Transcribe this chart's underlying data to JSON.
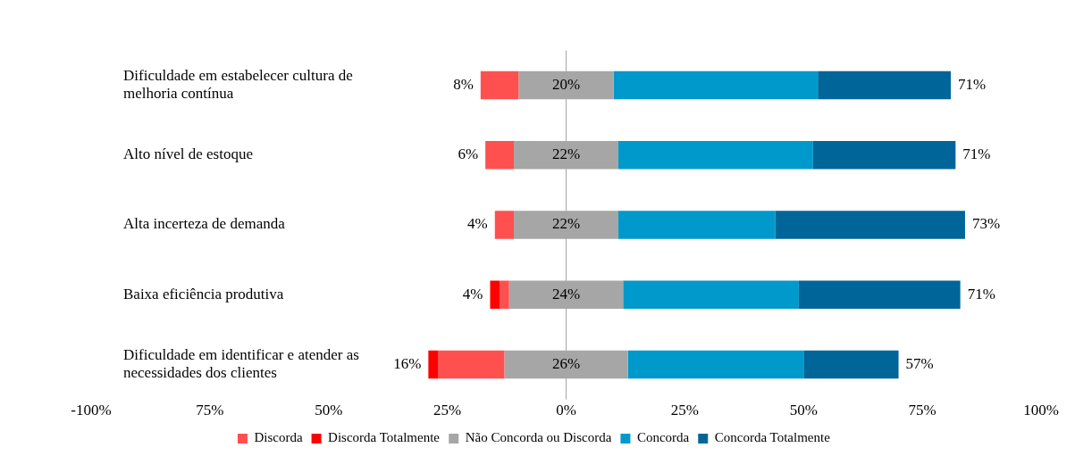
{
  "chart_data": {
    "type": "bar",
    "orientation": "horizontal",
    "categories": [
      "Dificuldade em estabelecer cultura de melhoria contínua",
      "Alto nível de estoque",
      "Alta incerteza de demanda",
      "Baixa eficiência produtiva",
      "Dificuldade em identificar e atender as necessidades dos clientes"
    ],
    "series": [
      {
        "name": "Discorda",
        "color": "#ff5050",
        "base": [
          -10,
          -11,
          -11,
          -12,
          -13
        ],
        "values": [
          -8,
          -6,
          -4,
          -2,
          -14
        ]
      },
      {
        "name": "Discorda Totalmente",
        "color": "#ff0000",
        "base": [
          null,
          null,
          null,
          -14,
          -27
        ],
        "values": [
          null,
          null,
          null,
          -2,
          -2
        ]
      },
      {
        "name": "Não Concorda ou Discorda",
        "color": "#a6a6a6",
        "base": [
          -10,
          -11,
          -11,
          -12,
          -13
        ],
        "values": [
          20,
          22,
          22,
          24,
          26
        ],
        "value_labels": [
          "20%",
          "22%",
          "22%",
          "24%",
          "26%"
        ]
      },
      {
        "name": "Concorda",
        "color": "#0099cc",
        "base": [
          10,
          11,
          11,
          12,
          13
        ],
        "values": [
          43,
          41,
          33,
          37,
          37
        ]
      },
      {
        "name": "Concorda Totalmente",
        "color": "#006699",
        "base": [
          53,
          52,
          44,
          49,
          50
        ],
        "values": [
          28,
          30,
          40,
          34,
          20
        ]
      }
    ],
    "xlim": [
      -100,
      100
    ],
    "xticks": [
      {
        "value": -100,
        "label": "-100%"
      },
      {
        "value": -75,
        "label": "75%"
      },
      {
        "value": -50,
        "label": "50%"
      },
      {
        "value": -25,
        "label": "25%"
      },
      {
        "value": 0,
        "label": "0%"
      },
      {
        "value": 25,
        "label": "25%"
      },
      {
        "value": 50,
        "label": "50%"
      },
      {
        "value": 75,
        "label": "75%"
      },
      {
        "value": 100,
        "label": "100%"
      }
    ],
    "ref_lines": [
      {
        "axis": "x",
        "value": 0,
        "color": "#a6a6a6"
      }
    ],
    "annotations": [
      {
        "text": "8%",
        "x": -18,
        "y": "Dificuldade em estabelecer cultura de melhoria contínua"
      },
      {
        "text": "6%",
        "x": -17,
        "y": "Alto nível de estoque"
      },
      {
        "text": "4%",
        "x": -15,
        "y": "Alta incerteza de demanda"
      },
      {
        "text": "4%",
        "x": -16,
        "y": "Baixa eficiência produtiva"
      },
      {
        "text": "16%",
        "x": -29,
        "y": "Dificuldade em identificar e atender as necessidades dos clientes"
      },
      {
        "text": "71%",
        "x": 81,
        "y": "Dificuldade em estabelecer cultura de melhoria contínua"
      },
      {
        "text": "71%",
        "x": 82,
        "y": "Alto nível de estoque"
      },
      {
        "text": "73%",
        "x": 84,
        "y": "Alta incerteza de demanda"
      },
      {
        "text": "71%",
        "x": 83,
        "y": "Baixa eficiência produtiva"
      },
      {
        "text": "57%",
        "x": 70,
        "y": "Dificuldade em identificar e atender as necessidades dos clientes"
      }
    ],
    "grid": false,
    "legend": "bottom"
  }
}
